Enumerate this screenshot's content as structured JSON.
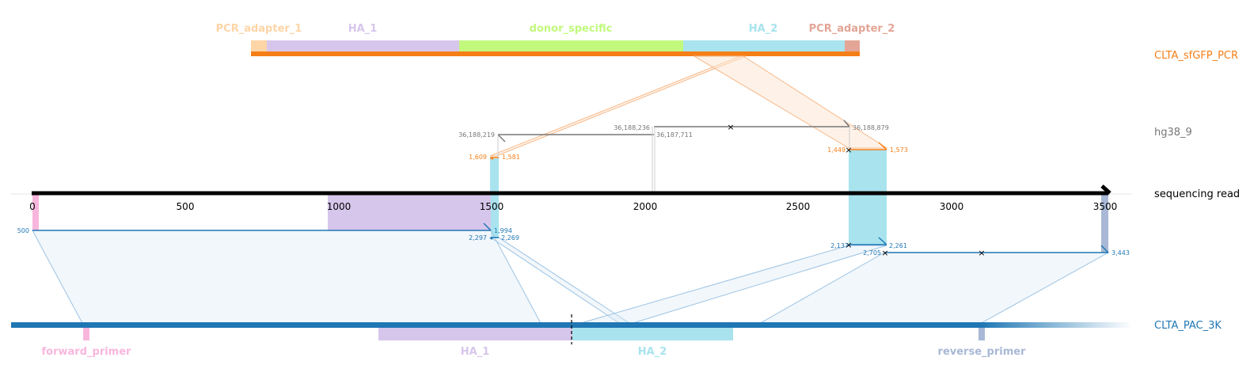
{
  "colors": {
    "pcr_adapter_1": "#fdd5a6",
    "ha_1": "#d7c6ec",
    "donor_specific": "#c2f97d",
    "ha_2": "#a8e3ee",
    "pcr_adapter_2": "#e3a596",
    "orange": "#f57f17",
    "gray": "#777777",
    "blue": "#1f77b4",
    "pink": "#f8b6dd",
    "reverse_primer": "#a8b8d6"
  },
  "tracks": {
    "top": "CLTA_sfGFP_PCR",
    "genome": "hg38_9",
    "read": "sequencing read",
    "bottom": "CLTA_PAC_3K"
  },
  "top_features": [
    "PCR_adapter_1",
    "HA_1",
    "donor_specific",
    "HA_2",
    "PCR_adapter_2"
  ],
  "bottom_features": [
    "forward_primer",
    "HA_1",
    "HA_2",
    "reverse_primer"
  ],
  "read_ticks": [
    "0",
    "500",
    "1000",
    "1500",
    "2000",
    "2500",
    "3000",
    "3500"
  ],
  "genome_coords": {
    "a_start": "36,188,219",
    "a_end": "36,187,711",
    "b_start": "36,188,236",
    "b_end": "36,188,879"
  },
  "orange_coords": {
    "a_left": "1,609",
    "a_right": "1,581",
    "b_left": "1,449",
    "b_right": "1,573"
  },
  "blue_coords": {
    "a_left": "500",
    "a_right": "1,994",
    "b_left": "2,297",
    "b_right": "2,269",
    "c_left": "2,137",
    "c_right": "2,261",
    "d_left": "2,705",
    "d_right": "3,443"
  }
}
